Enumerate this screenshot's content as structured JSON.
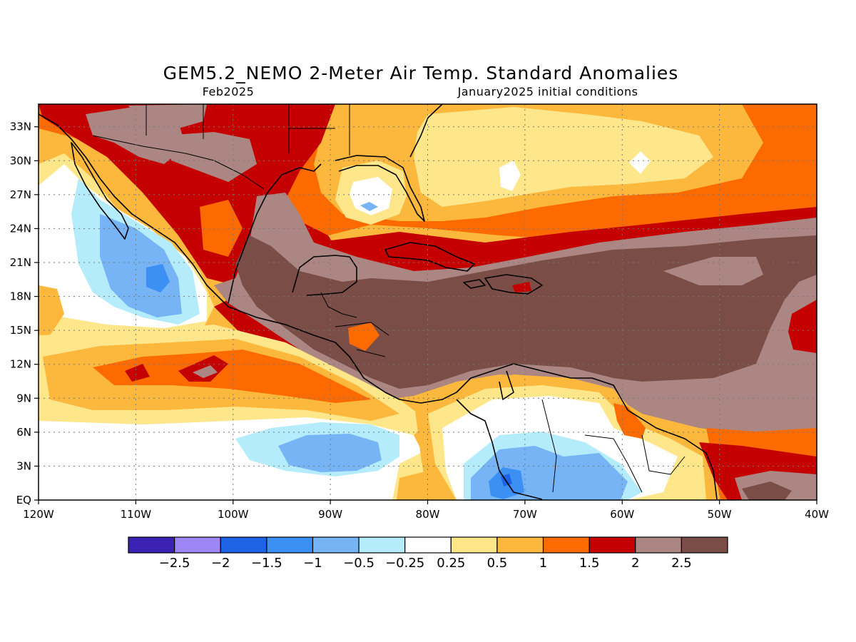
{
  "header": {
    "title": "GEM5.2_NEMO 2-Meter Air Temp. Standard Anomalies",
    "valid_month": "Feb2025",
    "init_conditions": "January2025 initial conditions"
  },
  "map": {
    "lon_range": [
      -120,
      -40
    ],
    "lat_range": [
      0,
      35
    ],
    "x_ticks": [
      {
        "lon": -120,
        "label": "120W"
      },
      {
        "lon": -110,
        "label": "110W"
      },
      {
        "lon": -100,
        "label": "100W"
      },
      {
        "lon": -90,
        "label": "90W"
      },
      {
        "lon": -80,
        "label": "80W"
      },
      {
        "lon": -70,
        "label": "70W"
      },
      {
        "lon": -60,
        "label": "60W"
      },
      {
        "lon": -50,
        "label": "50W"
      },
      {
        "lon": -40,
        "label": "40W"
      }
    ],
    "y_ticks": [
      {
        "lat": 0,
        "label": "EQ"
      },
      {
        "lat": 3,
        "label": "3N"
      },
      {
        "lat": 6,
        "label": "6N"
      },
      {
        "lat": 9,
        "label": "9N"
      },
      {
        "lat": 12,
        "label": "12N"
      },
      {
        "lat": 15,
        "label": "15N"
      },
      {
        "lat": 18,
        "label": "18N"
      },
      {
        "lat": 21,
        "label": "21N"
      },
      {
        "lat": 24,
        "label": "24N"
      },
      {
        "lat": 27,
        "label": "27N"
      },
      {
        "lat": 30,
        "label": "30N"
      },
      {
        "lat": 33,
        "label": "33N"
      }
    ]
  },
  "colorbar": {
    "colors": [
      "#3b22b4",
      "#9e86f6",
      "#1e62e6",
      "#3c90f4",
      "#76b4f6",
      "#b4ecfc",
      "#ffffff",
      "#fee68a",
      "#fcb83c",
      "#fc6a00",
      "#c40000",
      "#ac8682",
      "#7a4e46"
    ],
    "labels": [
      "-2.5",
      "-2",
      "-1.5",
      "-1",
      "-0.5",
      "-0.25",
      "0.25",
      "0.5",
      "1",
      "1.5",
      "2",
      "2.5"
    ]
  }
}
